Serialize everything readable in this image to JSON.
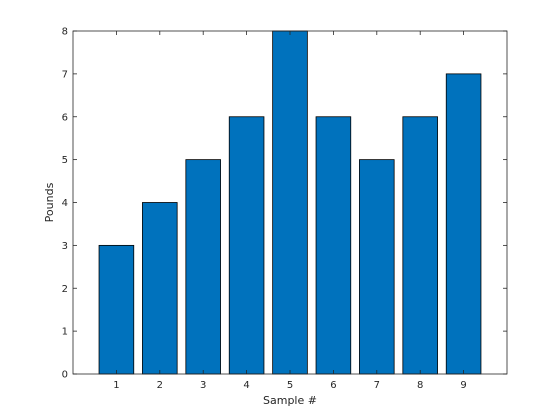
{
  "chart_data": {
    "type": "bar",
    "categories": [
      "1",
      "2",
      "3",
      "4",
      "5",
      "6",
      "7",
      "8",
      "9"
    ],
    "values": [
      3,
      4,
      5,
      6,
      8,
      6,
      5,
      6,
      7
    ],
    "xlabel": "Sample #",
    "ylabel": "Pounds",
    "ylim": [
      0,
      8
    ],
    "xlim": [
      0,
      10
    ],
    "yticks": [
      0,
      1,
      2,
      3,
      4,
      5,
      6,
      7,
      8
    ],
    "grid": false,
    "bar_color": "#0072BD",
    "edge_color": "#000000"
  }
}
